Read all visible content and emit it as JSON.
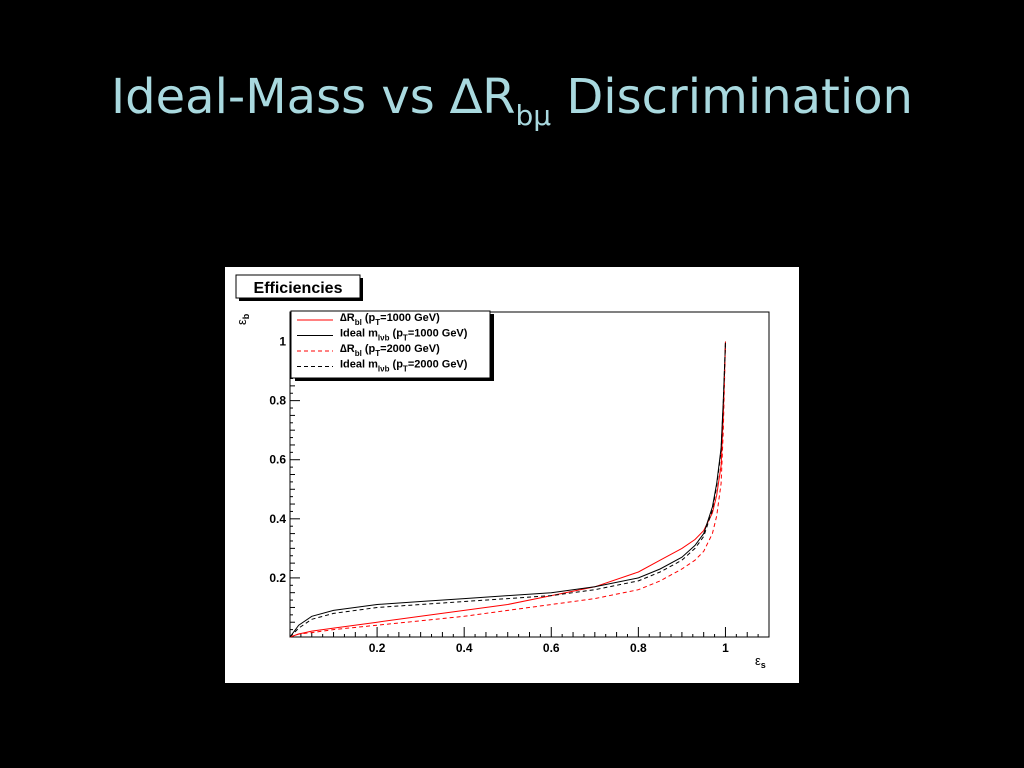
{
  "slide": {
    "title_prefix": "Ideal-Mass vs ",
    "title_delta": "∆R",
    "title_sub": "bμ",
    "title_suffix": " Discrimination",
    "title_color": "#a9d9df",
    "background": "#000000"
  },
  "chart_data": {
    "type": "line",
    "title": "Efficiencies",
    "xlabel": "ε",
    "xlabel_sub": "s",
    "ylabel": "ε",
    "ylabel_sub": "b",
    "xlim": [
      0,
      1.1
    ],
    "ylim": [
      0,
      1.1
    ],
    "xticks": [
      {
        "value": 0.2,
        "label": "0.2"
      },
      {
        "value": 0.4,
        "label": "0.4"
      },
      {
        "value": 0.6,
        "label": "0.6"
      },
      {
        "value": 0.8,
        "label": "0.8"
      },
      {
        "value": 1.0,
        "label": "1"
      }
    ],
    "yticks": [
      {
        "value": 0.2,
        "label": "0.2"
      },
      {
        "value": 0.4,
        "label": "0.4"
      },
      {
        "value": 0.6,
        "label": "0.6"
      },
      {
        "value": 0.8,
        "label": "0.8"
      },
      {
        "value": 1.0,
        "label": "1"
      }
    ],
    "grid": false,
    "legend_position": "top-left",
    "series": [
      {
        "legend_main": "∆R",
        "legend_sub": "bl",
        "legend_rest": " (p",
        "legend_sub2": "T",
        "legend_tail": "=1000 GeV)",
        "color": "#ff0000",
        "dash": "solid",
        "x": [
          0,
          0.02,
          0.05,
          0.1,
          0.2,
          0.3,
          0.4,
          0.5,
          0.6,
          0.7,
          0.8,
          0.85,
          0.9,
          0.93,
          0.95,
          0.97,
          0.98,
          0.99,
          0.995,
          1.0
        ],
        "y": [
          0,
          0.01,
          0.02,
          0.03,
          0.05,
          0.07,
          0.09,
          0.11,
          0.14,
          0.17,
          0.22,
          0.26,
          0.3,
          0.33,
          0.36,
          0.42,
          0.48,
          0.58,
          0.75,
          1.0
        ]
      },
      {
        "legend_main": "Ideal m",
        "legend_sub": "lνb",
        "legend_rest": " (p",
        "legend_sub2": "T",
        "legend_tail": "=1000 GeV)",
        "color": "#000000",
        "dash": "solid",
        "x": [
          0,
          0.02,
          0.05,
          0.1,
          0.2,
          0.3,
          0.4,
          0.5,
          0.6,
          0.7,
          0.8,
          0.85,
          0.9,
          0.93,
          0.95,
          0.97,
          0.98,
          0.99,
          0.995,
          1.0
        ],
        "y": [
          0,
          0.04,
          0.07,
          0.09,
          0.11,
          0.12,
          0.13,
          0.14,
          0.15,
          0.17,
          0.2,
          0.23,
          0.27,
          0.31,
          0.35,
          0.44,
          0.52,
          0.64,
          0.8,
          1.0
        ]
      },
      {
        "legend_main": "∆R",
        "legend_sub": "bl",
        "legend_rest": " (p",
        "legend_sub2": "T",
        "legend_tail": "=2000 GeV)",
        "color": "#ff0000",
        "dash": "dashed",
        "x": [
          0,
          0.02,
          0.05,
          0.1,
          0.2,
          0.3,
          0.4,
          0.5,
          0.6,
          0.7,
          0.8,
          0.85,
          0.9,
          0.93,
          0.95,
          0.97,
          0.98,
          0.99,
          0.995,
          1.0
        ],
        "y": [
          0,
          0.01,
          0.015,
          0.025,
          0.04,
          0.055,
          0.07,
          0.09,
          0.11,
          0.13,
          0.16,
          0.19,
          0.23,
          0.26,
          0.29,
          0.35,
          0.41,
          0.52,
          0.7,
          1.0
        ]
      },
      {
        "legend_main": "Ideal m",
        "legend_sub": "lνb",
        "legend_rest": " (p",
        "legend_sub2": "T",
        "legend_tail": "=2000 GeV)",
        "color": "#000000",
        "dash": "dashed",
        "x": [
          0,
          0.02,
          0.05,
          0.1,
          0.2,
          0.3,
          0.4,
          0.5,
          0.6,
          0.7,
          0.8,
          0.85,
          0.9,
          0.93,
          0.95,
          0.97,
          0.98,
          0.99,
          0.995,
          1.0
        ],
        "y": [
          0,
          0.03,
          0.06,
          0.08,
          0.1,
          0.11,
          0.12,
          0.13,
          0.14,
          0.16,
          0.19,
          0.22,
          0.26,
          0.3,
          0.34,
          0.43,
          0.51,
          0.63,
          0.79,
          1.0
        ]
      }
    ]
  }
}
